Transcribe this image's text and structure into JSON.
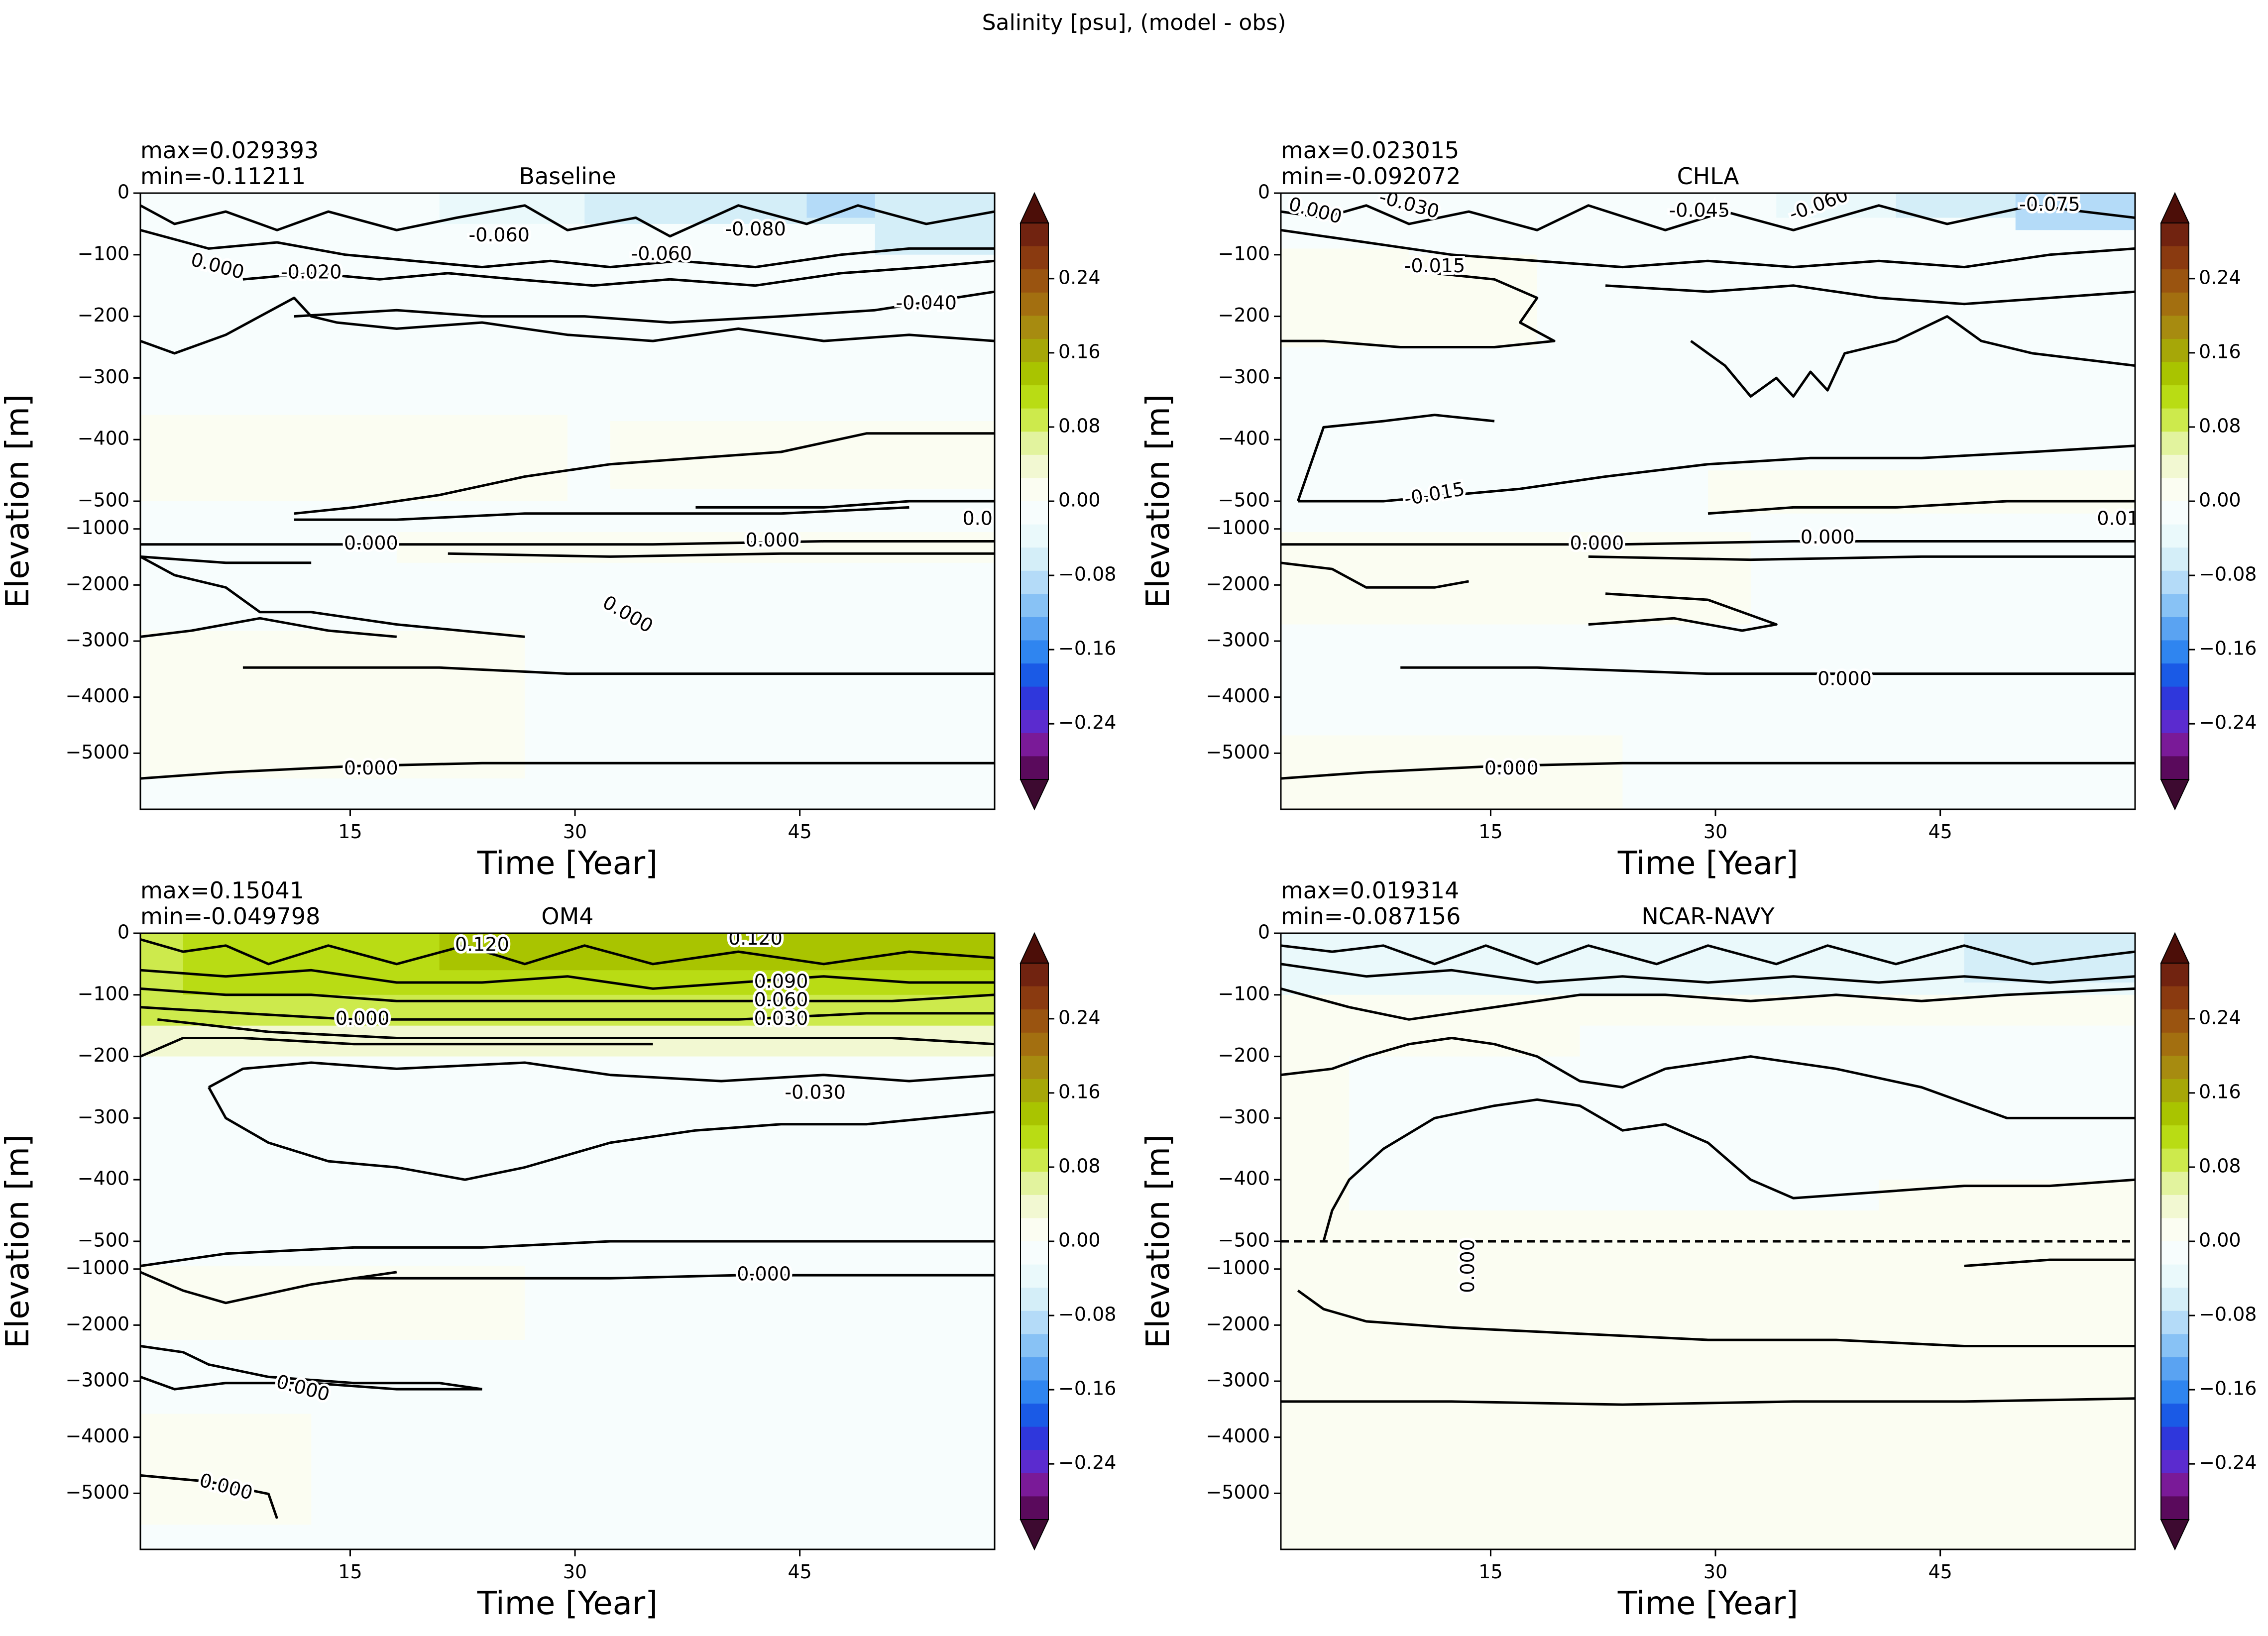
{
  "figure": {
    "suptitle": "Salinity [psu], (model - obs)"
  },
  "colors": {
    "contour": "#000000",
    "frame": "#000000",
    "cmap": [
      "#3d0a30",
      "#5a0a5c",
      "#7a1a98",
      "#5b2bcf",
      "#2f37dc",
      "#1a5ae6",
      "#2f85f0",
      "#5aa3f2",
      "#88c2f5",
      "#b4dbf8",
      "#d4eef8",
      "#eaf9fb",
      "#f7fdfd",
      "#fbfdf2",
      "#f2f8d2",
      "#e2f39e",
      "#cdea4c",
      "#b9dc14",
      "#a9c400",
      "#a6a708",
      "#a78b10",
      "#a36f10",
      "#9a5410",
      "#8a3a10",
      "#712310",
      "#4c0e08"
    ]
  },
  "chart_data": [
    {
      "type": "heatmap",
      "title": "Baseline",
      "stats": {
        "max": "max=0.029393",
        "min": "min=-0.11211"
      },
      "xlabel": "Time [Year]",
      "ylabel": "Elevation [m]",
      "xlim": [
        1,
        58
      ],
      "x_ticks": [
        "15",
        "30",
        "45"
      ],
      "y_ticks_upper": [
        "0",
        "−100",
        "−200",
        "−300",
        "−400",
        "−500"
      ],
      "y_ticks_lower": [
        "−1000",
        "−2000",
        "−3000",
        "−4000",
        "−5000"
      ],
      "contour_labels": [
        "-0.060",
        "-0.080",
        "0.000",
        "-0.020",
        "-0.060",
        "-0.040",
        "0.000",
        "0.000",
        "0.000",
        "0.0",
        "0.000"
      ],
      "colorbar": {
        "ticks": [
          "0.24",
          "0.16",
          "0.08",
          "0.00",
          "−0.08",
          "−0.16",
          "−0.24"
        ],
        "range": [
          -0.3,
          0.3
        ],
        "extend": "both"
      }
    },
    {
      "type": "heatmap",
      "title": "CHLA",
      "stats": {
        "max": "max=0.023015",
        "min": "min=-0.092072"
      },
      "xlabel": "Time [Year]",
      "ylabel": "Elevation [m]",
      "xlim": [
        1,
        58
      ],
      "x_ticks": [
        "15",
        "30",
        "45"
      ],
      "y_ticks_upper": [
        "0",
        "−100",
        "−200",
        "−300",
        "−400",
        "−500"
      ],
      "y_ticks_lower": [
        "−1000",
        "−2000",
        "−3000",
        "−4000",
        "−5000"
      ],
      "contour_labels": [
        "0.000",
        "-0.030",
        "-0.045",
        "-0.060",
        "-0.075",
        "-0.015",
        "-0.015",
        "0.000",
        "0.000",
        "0.01",
        "0.000",
        "0.000"
      ],
      "colorbar": {
        "ticks": [
          "0.24",
          "0.16",
          "0.08",
          "0.00",
          "−0.08",
          "−0.16",
          "−0.24"
        ],
        "range": [
          -0.3,
          0.3
        ],
        "extend": "both"
      }
    },
    {
      "type": "heatmap",
      "title": "OM4",
      "stats": {
        "max": "max=0.15041",
        "min": "min=-0.049798"
      },
      "xlabel": "Time [Year]",
      "ylabel": "Elevation [m]",
      "xlim": [
        1,
        58
      ],
      "x_ticks": [
        "15",
        "30",
        "45"
      ],
      "y_ticks_upper": [
        "0",
        "−100",
        "−200",
        "−300",
        "−400",
        "−500"
      ],
      "y_ticks_lower": [
        "−1000",
        "−2000",
        "−3000",
        "−4000",
        "−5000"
      ],
      "contour_labels": [
        "0.120",
        "0.120",
        "0.090",
        "0.060",
        "0.030",
        "0.000",
        "-0.030",
        "0.000",
        "0.000",
        "0.000"
      ],
      "colorbar": {
        "ticks": [
          "0.24",
          "0.16",
          "0.08",
          "0.00",
          "−0.08",
          "−0.16",
          "−0.24"
        ],
        "range": [
          -0.3,
          0.3
        ],
        "extend": "both"
      }
    },
    {
      "type": "heatmap",
      "title": "NCAR-NAVY",
      "stats": {
        "max": "max=0.019314",
        "min": "min=-0.087156"
      },
      "xlabel": "Time [Year]",
      "ylabel": "Elevation [m]",
      "xlim": [
        1,
        58
      ],
      "x_ticks": [
        "15",
        "30",
        "45"
      ],
      "y_ticks_upper": [
        "0",
        "−100",
        "−200",
        "−300",
        "−400",
        "−500"
      ],
      "y_ticks_lower": [
        "−1000",
        "−2000",
        "−3000",
        "−4000",
        "−5000"
      ],
      "contour_labels": [
        "0.000"
      ],
      "colorbar": {
        "ticks": [
          "0.24",
          "0.16",
          "0.08",
          "0.00",
          "−0.08",
          "−0.16",
          "−0.24"
        ],
        "range": [
          -0.3,
          0.3
        ],
        "extend": "both"
      }
    }
  ]
}
